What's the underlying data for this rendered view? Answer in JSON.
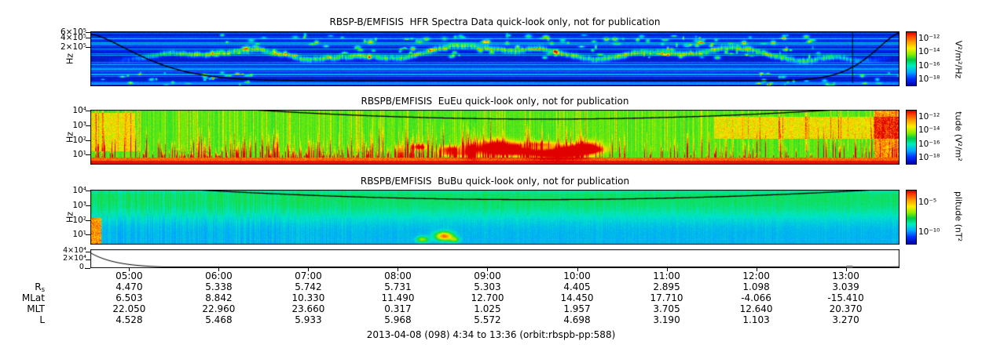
{
  "caption": "2013-04-08 (098) 4:34 to 13:36 (orbit:rbspb-pp:588)",
  "chart_data": [
    {
      "type": "heatmap",
      "name": "hfr-spectra",
      "title": "RBSP-B/EMFISIS  HFR Spectra Data quick-look only, not for publication",
      "x_start": "04:34",
      "x_end": "13:36",
      "y_axis": {
        "label": "Hz",
        "scale": "log",
        "min": 10000,
        "max": 650000,
        "ticks": [
          {
            "value": 600000,
            "label": "6×10⁵"
          },
          {
            "value": 400000,
            "label": "4×10⁵"
          },
          {
            "value": 200000,
            "label": "2×10⁵"
          }
        ]
      },
      "color_axis": {
        "label": "V²/m²/Hz",
        "scale": "log",
        "min": 1e-19,
        "max": 1e-11,
        "ticks": [
          {
            "value": 1e-12,
            "label": "10⁻¹²"
          },
          {
            "value": 1e-14,
            "label": "10⁻¹⁴"
          },
          {
            "value": 1e-16,
            "label": "10⁻¹⁶"
          },
          {
            "value": 1e-18,
            "label": "10⁻¹⁸"
          }
        ]
      },
      "content": "mostly low spectral density (dark blue) with horizontal banded noise; intermittent green/cyan wavy emission band near 100-300 kHz; black U-shaped overlay line high at orbit start/end and low mid-orbit; thin vertical black mark near 12:05"
    },
    {
      "type": "heatmap",
      "name": "euEu-spectra",
      "title": "RBSPB/EMFISIS  EuEu quick-look only, not for publication",
      "x_start": "04:34",
      "x_end": "13:36",
      "y_axis": {
        "label": "Hz",
        "scale": "log",
        "min": 2,
        "max": 12000,
        "ticks": [
          {
            "value": 10000,
            "label": "10⁴"
          },
          {
            "value": 1000,
            "label": "10³"
          },
          {
            "value": 100,
            "label": "10²"
          },
          {
            "value": 10,
            "label": "10¹"
          }
        ]
      },
      "color_axis": {
        "label": "tude (V²/m²",
        "scale": "log",
        "min": 1e-19,
        "max": 1e-11,
        "ticks": [
          {
            "value": 1e-12,
            "label": "10⁻¹²"
          },
          {
            "value": 1e-14,
            "label": "10⁻¹⁴"
          },
          {
            "value": 1e-16,
            "label": "10⁻¹⁶"
          },
          {
            "value": 1e-18,
            "label": "10⁻¹⁸"
          }
        ]
      },
      "content": "green background; solid red band at lowest frequencies; dense red/orange vertical burst streaks below ~1 kHz between ~05:00 and 10:00; yellow speckle at top left and broad yellow-green patch after ~11:30; shallow black arc near top"
    },
    {
      "type": "heatmap",
      "name": "bubu-spectra",
      "title": "RBSPB/EMFISIS  BuBu quick-look only, not for publication",
      "x_start": "04:34",
      "x_end": "13:36",
      "y_axis": {
        "label": "Hz",
        "scale": "log",
        "min": 2,
        "max": 12000,
        "ticks": [
          {
            "value": 10000,
            "label": "10⁴"
          },
          {
            "value": 1000,
            "label": "10³"
          },
          {
            "value": 100,
            "label": "10²"
          },
          {
            "value": 10,
            "label": "10¹"
          }
        ]
      },
      "color_axis": {
        "label": "plitude (nT²",
        "scale": "log",
        "min": 1e-12,
        "max": 0.001,
        "ticks": [
          {
            "value": 1e-05,
            "label": "10⁻⁵"
          },
          {
            "value": 1e-10,
            "label": "10⁻¹⁰"
          }
        ]
      },
      "content": "cyan/blue background, greener near top; orange column at far left bottom; red/orange blob near 08:30 at low frequency; shallow black arc near top"
    },
    {
      "type": "line",
      "name": "auxiliary-trace",
      "y_axis": {
        "scale": "linear",
        "min": 0,
        "max": 45000,
        "ticks": [
          {
            "value": 40000,
            "label": "4×10⁴"
          },
          {
            "value": 20000,
            "label": "2×10⁴"
          },
          {
            "value": 0,
            "label": "0."
          }
        ]
      },
      "description": "black line starting near 3.8×10⁴ at 04:34, decaying rapidly to near zero before 05:00, flat near zero, small uptick after 13:00"
    },
    {
      "type": "table",
      "name": "ephemeris",
      "columns": [
        "05:00",
        "06:00",
        "07:00",
        "08:00",
        "09:00",
        "10:00",
        "11:00",
        "12:00",
        "13:00"
      ],
      "rows": [
        {
          "label": "R",
          "subscript": "s",
          "values": [
            "4.470",
            "5.338",
            "5.742",
            "5.731",
            "5.303",
            "4.405",
            "2.895",
            "1.098",
            "3.039"
          ]
        },
        {
          "label": "MLat",
          "subscript": "",
          "values": [
            "6.503",
            "8.842",
            "10.330",
            "11.490",
            "12.700",
            "14.450",
            "17.710",
            "-4.066",
            "-15.410"
          ]
        },
        {
          "label": "MLT",
          "subscript": "",
          "values": [
            "22.050",
            "22.960",
            "23.660",
            "0.317",
            "1.025",
            "1.957",
            "3.705",
            "12.640",
            "20.370"
          ]
        },
        {
          "label": "L",
          "subscript": "",
          "values": [
            "4.528",
            "5.468",
            "5.933",
            "5.968",
            "5.572",
            "4.698",
            "3.190",
            "1.103",
            "3.270"
          ]
        }
      ]
    }
  ]
}
